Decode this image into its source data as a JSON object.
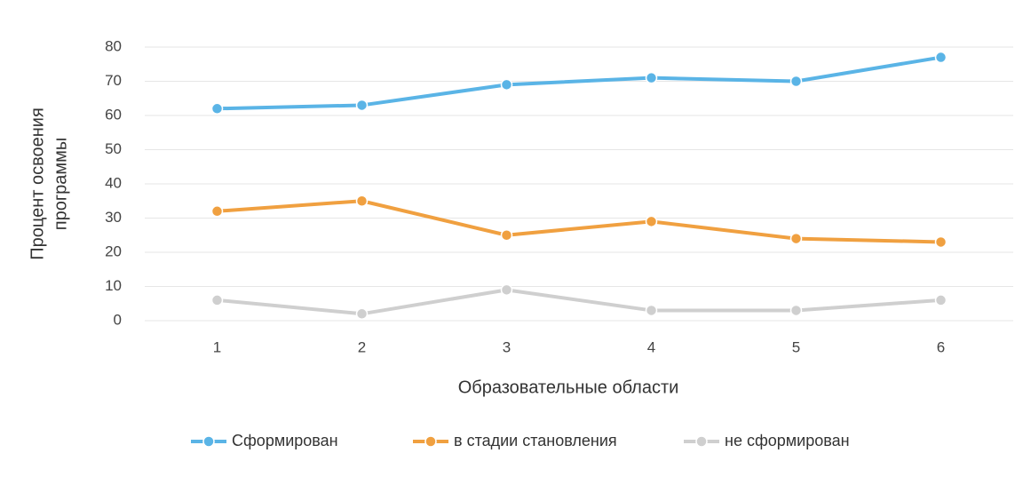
{
  "chart_data": {
    "type": "line",
    "x_label": "Образовательные области",
    "y_label": [
      "Процент освоения",
      "программы"
    ],
    "categories": [
      "1",
      "2",
      "3",
      "4",
      "5",
      "6"
    ],
    "series": [
      {
        "name": "Сформирован",
        "color": "#5ab4e6",
        "values": [
          62,
          63,
          69,
          71,
          70,
          77
        ]
      },
      {
        "name": "в стадии становления",
        "color": "#f0a040",
        "values": [
          32,
          35,
          25,
          29,
          24,
          23
        ]
      },
      {
        "name": "не сформирован",
        "color": "#cfcfcf",
        "values": [
          6,
          2,
          9,
          3,
          3,
          6
        ]
      }
    ],
    "ylim": [
      0,
      80
    ],
    "yticks": [
      0,
      10,
      20,
      30,
      40,
      50,
      60,
      70,
      80
    ],
    "grid": true,
    "legend": "bottom"
  }
}
